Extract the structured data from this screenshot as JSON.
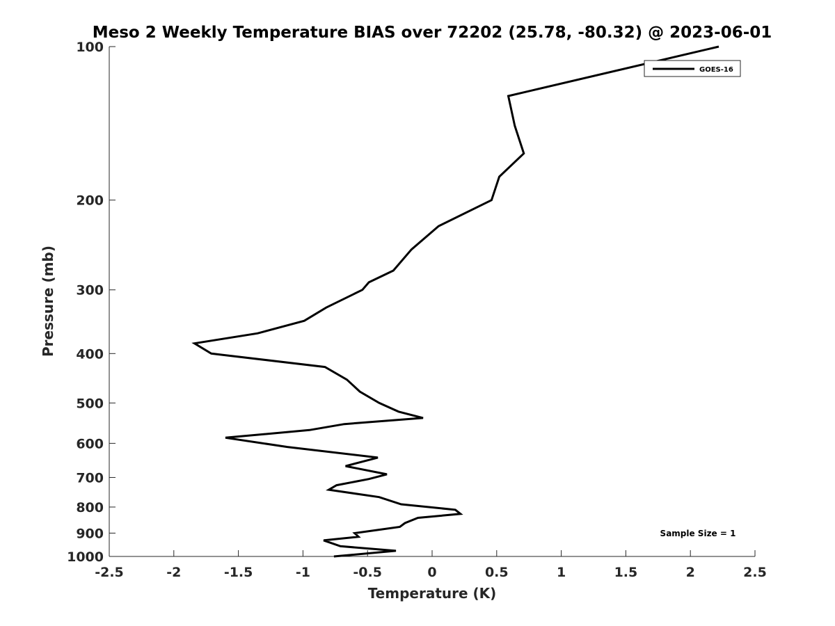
{
  "chart_data": {
    "type": "line",
    "title": "Meso 2 Weekly Temperature BIAS over 72202 (25.78, -80.32) @ 2023-06-01",
    "xlabel": "Temperature (K)",
    "ylabel": "Pressure (mb)",
    "xlim": [
      -2.5,
      2.5
    ],
    "ylim": [
      100,
      1000
    ],
    "yscale": "log",
    "y_reversed": true,
    "xticks": [
      -2.5,
      -2,
      -1.5,
      -1,
      -0.5,
      0,
      0.5,
      1,
      1.5,
      2,
      2.5
    ],
    "xtick_labels": [
      "-2.5",
      "-2",
      "-1.5",
      "-1",
      "-0.5",
      "0",
      "0.5",
      "1",
      "1.5",
      "2",
      "2.5"
    ],
    "yticks": [
      100,
      200,
      300,
      400,
      500,
      600,
      700,
      800,
      900,
      1000
    ],
    "ytick_labels": [
      "100",
      "200",
      "300",
      "400",
      "500",
      "600",
      "700",
      "800",
      "900",
      "1000"
    ],
    "grid": false,
    "legend_position": "top-right",
    "annotation": "Sample Size = 1",
    "series": [
      {
        "name": "GOES-16",
        "color": "#000000",
        "points": [
          [
            2.22,
            100
          ],
          [
            0.59,
            125
          ],
          [
            0.64,
            143
          ],
          [
            0.71,
            162
          ],
          [
            0.52,
            180
          ],
          [
            0.46,
            200
          ],
          [
            0.05,
            225
          ],
          [
            -0.16,
            250
          ],
          [
            -0.3,
            275
          ],
          [
            -0.49,
            290
          ],
          [
            -0.54,
            300
          ],
          [
            -0.82,
            325
          ],
          [
            -0.99,
            345
          ],
          [
            -1.35,
            365
          ],
          [
            -1.84,
            382
          ],
          [
            -1.71,
            400
          ],
          [
            -0.83,
            425
          ],
          [
            -0.66,
            450
          ],
          [
            -0.56,
            475
          ],
          [
            -0.41,
            500
          ],
          [
            -0.26,
            520
          ],
          [
            -0.07,
            535
          ],
          [
            -0.68,
            550
          ],
          [
            -0.95,
            565
          ],
          [
            -1.6,
            585
          ],
          [
            -1.12,
            610
          ],
          [
            -0.42,
            640
          ],
          [
            -0.67,
            665
          ],
          [
            -0.35,
            690
          ],
          [
            -0.49,
            705
          ],
          [
            -0.74,
            725
          ],
          [
            -0.8,
            740
          ],
          [
            -0.41,
            765
          ],
          [
            -0.24,
            790
          ],
          [
            0.18,
            810
          ],
          [
            0.22,
            825
          ],
          [
            -0.11,
            840
          ],
          [
            -0.21,
            860
          ],
          [
            -0.25,
            875
          ],
          [
            -0.6,
            900
          ],
          [
            -0.57,
            915
          ],
          [
            -0.84,
            930
          ],
          [
            -0.71,
            955
          ],
          [
            -0.28,
            975
          ],
          [
            -0.76,
            1000
          ]
        ]
      }
    ]
  }
}
